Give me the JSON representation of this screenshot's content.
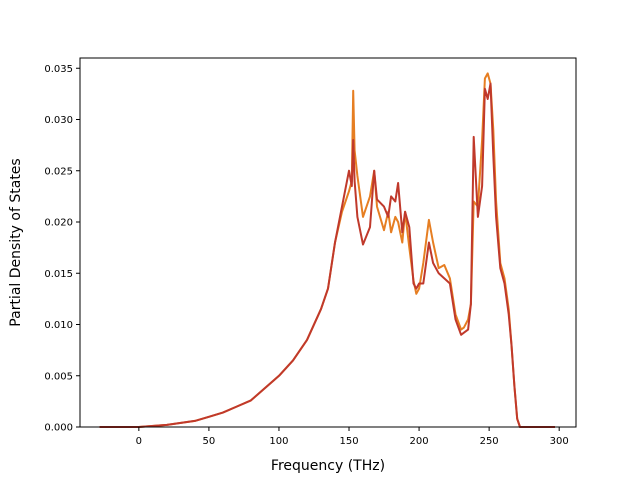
{
  "chart_data": {
    "type": "line",
    "title": "",
    "xlabel": "Frequency (THz)",
    "ylabel": "Partial Density of States",
    "xlim": [
      -42,
      312
    ],
    "ylim": [
      0,
      0.036
    ],
    "xticks": [
      0,
      50,
      100,
      150,
      200,
      250,
      300
    ],
    "yticks": [
      0.0,
      0.005,
      0.01,
      0.015,
      0.02,
      0.025,
      0.03,
      0.035
    ],
    "xtick_labels": [
      "0",
      "50",
      "100",
      "150",
      "200",
      "250",
      "300"
    ],
    "ytick_labels": [
      "0.000",
      "0.005",
      "0.010",
      "0.015",
      "0.020",
      "0.025",
      "0.030",
      "0.035"
    ],
    "grid": false,
    "legend": false,
    "series": [
      {
        "color": "#e67e22",
        "x": [
          -28,
          0,
          20,
          40,
          50,
          60,
          70,
          80,
          90,
          100,
          110,
          120,
          130,
          135,
          140,
          145,
          150,
          152,
          153,
          154,
          156,
          160,
          165,
          168,
          170,
          175,
          178,
          180,
          183,
          185,
          188,
          190,
          193,
          196,
          198,
          200,
          203,
          207,
          210,
          214,
          218,
          222,
          226,
          230,
          232,
          235,
          237,
          239,
          242,
          245,
          247,
          249,
          251,
          253,
          255,
          258,
          261,
          264,
          266,
          268,
          270,
          272,
          275,
          280,
          290,
          297
        ],
        "y": [
          0,
          0,
          0.0002,
          0.0006,
          0.001,
          0.0014,
          0.002,
          0.0026,
          0.0038,
          0.005,
          0.0065,
          0.0085,
          0.0115,
          0.0135,
          0.018,
          0.021,
          0.023,
          0.024,
          0.0328,
          0.027,
          0.0245,
          0.0205,
          0.0225,
          0.025,
          0.0215,
          0.0192,
          0.021,
          0.019,
          0.0205,
          0.02,
          0.018,
          0.021,
          0.0175,
          0.0143,
          0.013,
          0.0135,
          0.016,
          0.0202,
          0.018,
          0.0155,
          0.0158,
          0.0145,
          0.011,
          0.0095,
          0.0097,
          0.0105,
          0.012,
          0.022,
          0.0215,
          0.028,
          0.034,
          0.0345,
          0.0335,
          0.029,
          0.022,
          0.016,
          0.0145,
          0.0115,
          0.008,
          0.004,
          0.0008,
          0,
          0,
          0,
          0,
          0
        ]
      },
      {
        "color": "#c0392b",
        "x": [
          -28,
          0,
          20,
          40,
          50,
          60,
          70,
          80,
          90,
          100,
          110,
          120,
          130,
          135,
          140,
          145,
          150,
          152,
          153,
          154,
          156,
          160,
          165,
          168,
          170,
          175,
          178,
          180,
          183,
          185,
          188,
          190,
          193,
          196,
          198,
          200,
          203,
          207,
          210,
          214,
          218,
          222,
          226,
          230,
          232,
          235,
          237,
          239,
          242,
          245,
          247,
          249,
          251,
          253,
          255,
          258,
          261,
          264,
          266,
          268,
          270,
          272,
          275,
          280,
          290,
          297
        ],
        "y": [
          0,
          0,
          0.0002,
          0.0006,
          0.001,
          0.0014,
          0.002,
          0.0026,
          0.0038,
          0.005,
          0.0065,
          0.0085,
          0.0115,
          0.0135,
          0.018,
          0.0215,
          0.025,
          0.0235,
          0.028,
          0.024,
          0.0205,
          0.0178,
          0.0195,
          0.025,
          0.0222,
          0.0215,
          0.0205,
          0.0225,
          0.022,
          0.0238,
          0.019,
          0.021,
          0.0195,
          0.014,
          0.0135,
          0.014,
          0.014,
          0.018,
          0.016,
          0.015,
          0.0145,
          0.014,
          0.0105,
          0.009,
          0.0092,
          0.0095,
          0.012,
          0.0283,
          0.0205,
          0.0235,
          0.033,
          0.032,
          0.0335,
          0.0265,
          0.0205,
          0.0155,
          0.014,
          0.011,
          0.008,
          0.004,
          0.0008,
          0,
          0,
          0,
          0,
          0
        ]
      }
    ]
  }
}
